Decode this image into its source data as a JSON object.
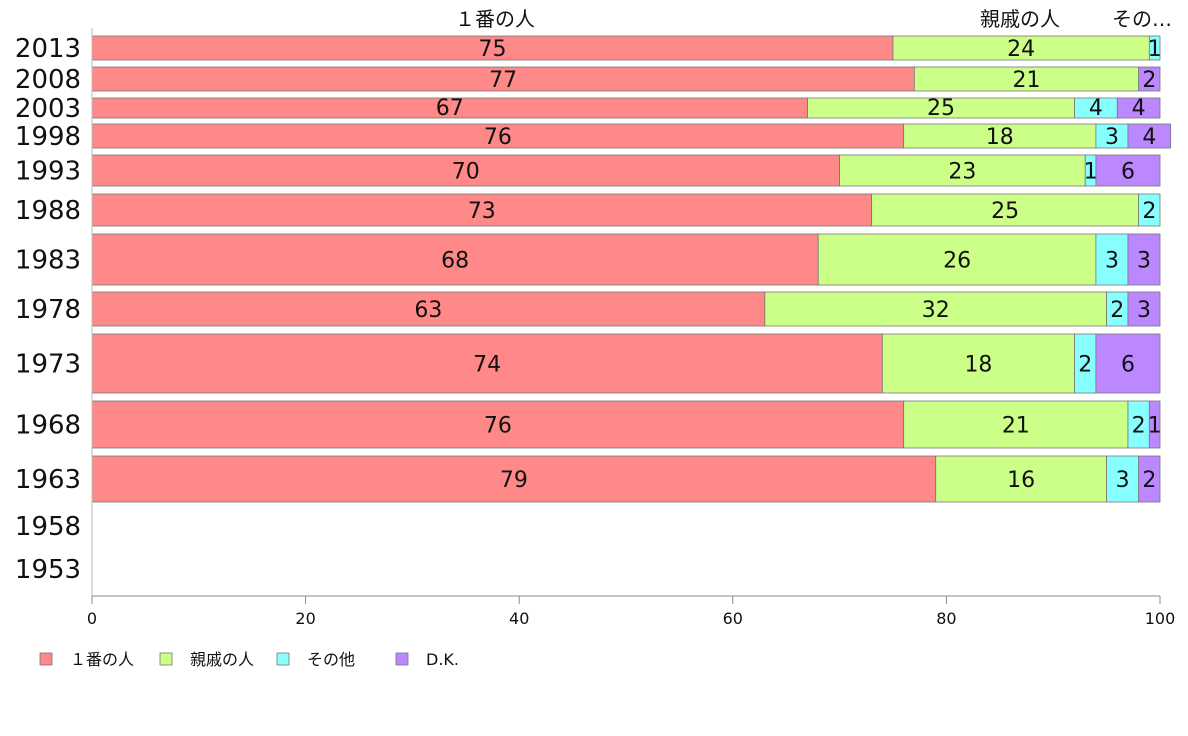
{
  "chart_data": {
    "type": "bar",
    "orientation": "horizontal",
    "stacked": true,
    "categories": [
      "2013",
      "2008",
      "2003",
      "1998",
      "1993",
      "1988",
      "1983",
      "1978",
      "1973",
      "1968",
      "1963",
      "1958",
      "1953"
    ],
    "series": [
      {
        "name": "１番の人",
        "color": "#ff8888",
        "values": [
          75,
          77,
          67,
          76,
          70,
          73,
          68,
          63,
          74,
          76,
          79,
          null,
          null
        ]
      },
      {
        "name": "親戚の人",
        "color": "#ccff88",
        "values": [
          24,
          21,
          25,
          18,
          23,
          25,
          26,
          32,
          18,
          21,
          16,
          null,
          null
        ]
      },
      {
        "name": "その他",
        "color": "#88ffff",
        "values": [
          1,
          0,
          4,
          3,
          1,
          2,
          3,
          2,
          2,
          2,
          3,
          null,
          null
        ]
      },
      {
        "name": "D.K.",
        "color": "#bb88ff",
        "values": [
          0,
          2,
          4,
          4,
          6,
          0,
          3,
          3,
          6,
          1,
          2,
          null,
          null
        ]
      }
    ],
    "top_labels": [
      "１番の人",
      "親戚の人",
      "その…"
    ],
    "xlim": [
      0,
      100
    ],
    "xticks": [
      "0",
      "20",
      "40",
      "60",
      "80",
      "100"
    ],
    "legend": "bottom-left",
    "grid": false
  }
}
